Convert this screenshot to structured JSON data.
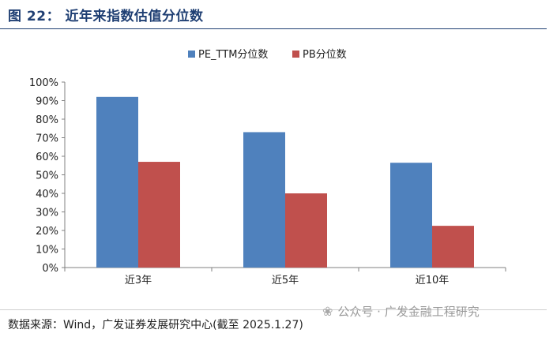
{
  "header": {
    "title": "图 22：  近年来指数估值分位数"
  },
  "legend": [
    {
      "label": "PE_TTM分位数",
      "color": "#4f81bd"
    },
    {
      "label": "PB分位数",
      "color": "#c0504d"
    }
  ],
  "chart_data": {
    "type": "bar",
    "categories": [
      "近3年",
      "近5年",
      "近10年"
    ],
    "series": [
      {
        "name": "PE_TTM分位数",
        "values": [
          92,
          73,
          56.5
        ],
        "color": "#4f81bd"
      },
      {
        "name": "PB分位数",
        "values": [
          57,
          40,
          22.5
        ],
        "color": "#c0504d"
      }
    ],
    "yticks": [
      "0%",
      "10%",
      "20%",
      "30%",
      "40%",
      "50%",
      "60%",
      "70%",
      "80%",
      "90%",
      "100%"
    ],
    "ylim": [
      0,
      100
    ],
    "unit": "%",
    "grid": false,
    "legend_position": "top-center"
  },
  "footer": {
    "source": "数据来源：Wind，广发证券发展研究中心(截至 2025.1.27)",
    "watermark_icon": "wechat-icon",
    "watermark": "公众号 · 广发金融工程研究"
  }
}
